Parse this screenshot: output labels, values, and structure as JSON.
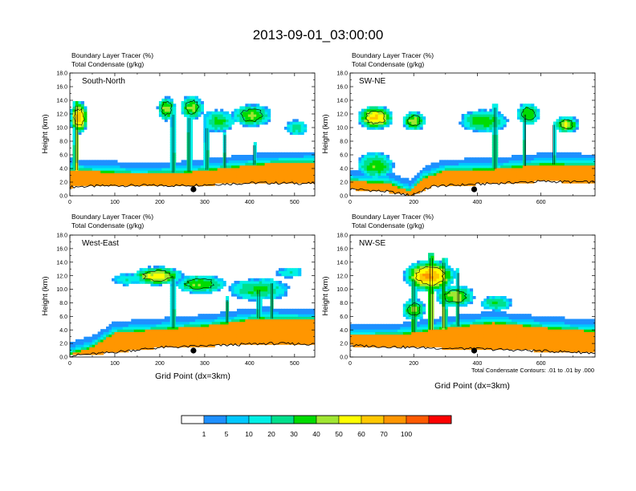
{
  "title": "2013-09-01_03:00:00",
  "footnote": "Total Condensate Contours: .01 to .01 by .000",
  "chart_data": [
    {
      "type": "heatmap",
      "panel_label": "South-North",
      "subtitle_1": "Boundary Layer Tracer   (%)",
      "subtitle_2": "Total Condensate   (g/kg)",
      "ylabel": "Height (km)",
      "xlabel": "",
      "xlim": [
        0,
        545
      ],
      "ylim": [
        0,
        18
      ],
      "xticks": [
        0,
        100,
        200,
        300,
        400,
        500
      ],
      "yticks": [
        "0.0",
        "2.0",
        "4.0",
        "6.0",
        "8.0",
        "10.0",
        "12.0",
        "14.0",
        "16.0",
        "18.0"
      ],
      "marker_x": 275,
      "field": {
        "bl_top_km": [
          [
            0,
            3.8
          ],
          [
            60,
            3.6
          ],
          [
            150,
            3.2
          ],
          [
            250,
            3.4
          ],
          [
            350,
            4.1
          ],
          [
            450,
            4.8
          ],
          [
            545,
            4.9
          ]
        ],
        "terrain_km": [
          [
            0,
            1.3
          ],
          [
            100,
            1.5
          ],
          [
            250,
            1.5
          ],
          [
            330,
            1.7
          ],
          [
            420,
            1.9
          ],
          [
            545,
            1.8
          ]
        ],
        "clouds": [
          {
            "x": 20,
            "y": 11.5,
            "w": 32,
            "h": 3.8,
            "peak": 68
          },
          {
            "x": 215,
            "y": 12.8,
            "w": 32,
            "h": 2.8,
            "peak": 45
          },
          {
            "x": 272,
            "y": 13.0,
            "w": 42,
            "h": 2.8,
            "peak": 42
          },
          {
            "x": 330,
            "y": 11.0,
            "w": 60,
            "h": 2.6,
            "peak": 32
          },
          {
            "x": 405,
            "y": 11.8,
            "w": 70,
            "h": 2.6,
            "peak": 42
          },
          {
            "x": 505,
            "y": 10.0,
            "w": 40,
            "h": 1.8,
            "peak": 25
          }
        ],
        "columns": [
          {
            "x": 15,
            "top": 13.8,
            "w": 12,
            "peak": 55
          },
          {
            "x": 230,
            "top": 12.5,
            "w": 8,
            "peak": 35
          },
          {
            "x": 265,
            "top": 12.0,
            "w": 10,
            "peak": 35
          },
          {
            "x": 305,
            "top": 10.5,
            "w": 10,
            "peak": 30
          },
          {
            "x": 345,
            "top": 9.5,
            "w": 8,
            "peak": 30
          },
          {
            "x": 410,
            "top": 8.0,
            "w": 8,
            "peak": 30
          }
        ]
      }
    },
    {
      "type": "heatmap",
      "panel_label": "SW-NE",
      "subtitle_1": "Boundary Layer Tracer   (%)",
      "subtitle_2": "Total Condensate   (g/kg)",
      "ylabel": "Height (km)",
      "xlabel": "",
      "xlim": [
        0,
        770
      ],
      "ylim": [
        0,
        18
      ],
      "xticks": [
        0,
        200,
        400,
        600
      ],
      "yticks": [
        "0.0",
        "2.0",
        "4.0",
        "6.0",
        "8.0",
        "10.0",
        "12.0",
        "14.0",
        "16.0",
        "18.0"
      ],
      "marker_x": 390,
      "field": {
        "bl_top_km": [
          [
            0,
            2.2
          ],
          [
            120,
            1.9
          ],
          [
            190,
            0.6
          ],
          [
            230,
            2.6
          ],
          [
            300,
            3.7
          ],
          [
            450,
            3.9
          ],
          [
            600,
            4.6
          ],
          [
            770,
            4.5
          ]
        ],
        "terrain_km": [
          [
            0,
            1.0
          ],
          [
            120,
            0.6
          ],
          [
            190,
            0.05
          ],
          [
            260,
            1.4
          ],
          [
            400,
            1.7
          ],
          [
            600,
            2.1
          ],
          [
            770,
            2.0
          ]
        ],
        "clouds": [
          {
            "x": 80,
            "y": 11.5,
            "w": 90,
            "h": 2.8,
            "peak": 62
          },
          {
            "x": 200,
            "y": 11.0,
            "w": 60,
            "h": 2.2,
            "peak": 45
          },
          {
            "x": 80,
            "y": 4.5,
            "w": 90,
            "h": 3.2,
            "peak": 38
          },
          {
            "x": 420,
            "y": 11.0,
            "w": 120,
            "h": 2.6,
            "peak": 38
          },
          {
            "x": 560,
            "y": 12.0,
            "w": 60,
            "h": 2.6,
            "peak": 40
          },
          {
            "x": 680,
            "y": 10.5,
            "w": 60,
            "h": 2.0,
            "peak": 50
          }
        ],
        "columns": [
          {
            "x": 455,
            "top": 13.5,
            "w": 12,
            "peak": 45
          },
          {
            "x": 550,
            "top": 12.5,
            "w": 10,
            "peak": 40
          },
          {
            "x": 640,
            "top": 11.0,
            "w": 10,
            "peak": 35
          }
        ]
      }
    },
    {
      "type": "heatmap",
      "panel_label": "West-East",
      "subtitle_1": "Boundary Layer Tracer   (%)",
      "subtitle_2": "Total Condensate   (g/kg)",
      "ylabel": "Height (km)",
      "xlabel": "Grid Point (dx=3km)",
      "xlim": [
        0,
        545
      ],
      "ylim": [
        0,
        18
      ],
      "xticks": [
        0,
        100,
        200,
        300,
        400,
        500
      ],
      "yticks": [
        "0.0",
        "2.0",
        "4.0",
        "6.0",
        "8.0",
        "10.0",
        "12.0",
        "14.0",
        "16.0",
        "18.0"
      ],
      "marker_x": 275,
      "field": {
        "bl_top_km": [
          [
            0,
            0.5
          ],
          [
            50,
            1.5
          ],
          [
            100,
            3.6
          ],
          [
            200,
            4.1
          ],
          [
            300,
            4.6
          ],
          [
            420,
            5.7
          ],
          [
            545,
            5.5
          ]
        ],
        "terrain_km": [
          [
            0,
            0.2
          ],
          [
            80,
            0.6
          ],
          [
            200,
            1.4
          ],
          [
            330,
            1.7
          ],
          [
            440,
            2.0
          ],
          [
            545,
            1.9
          ]
        ],
        "clouds": [
          {
            "x": 195,
            "y": 12.0,
            "w": 90,
            "h": 2.2,
            "peak": 55
          },
          {
            "x": 290,
            "y": 10.8,
            "w": 90,
            "h": 2.2,
            "peak": 40
          },
          {
            "x": 420,
            "y": 10.0,
            "w": 110,
            "h": 2.6,
            "peak": 32
          },
          {
            "x": 130,
            "y": 11.5,
            "w": 60,
            "h": 1.4,
            "peak": 18
          },
          {
            "x": 490,
            "y": 12.5,
            "w": 50,
            "h": 1.2,
            "peak": 18
          }
        ],
        "columns": [
          {
            "x": 230,
            "top": 12.5,
            "w": 8,
            "peak": 35
          },
          {
            "x": 350,
            "top": 9.0,
            "w": 8,
            "peak": 30
          },
          {
            "x": 420,
            "top": 10.5,
            "w": 10,
            "peak": 30
          },
          {
            "x": 450,
            "top": 11.5,
            "w": 8,
            "peak": 30
          }
        ]
      }
    },
    {
      "type": "heatmap",
      "panel_label": "NW-SE",
      "subtitle_1": "Boundary Layer Tracer   (%)",
      "subtitle_2": "Total Condensate   (g/kg)",
      "ylabel": "Height (km)",
      "xlabel": "Grid Point (dx=3km)",
      "xlim": [
        0,
        770
      ],
      "ylim": [
        0,
        18
      ],
      "xticks": [
        0,
        200,
        400,
        600
      ],
      "yticks": [
        "0.0",
        "2.0",
        "4.0",
        "6.0",
        "8.0",
        "10.0",
        "12.0",
        "14.0",
        "16.0",
        "18.0"
      ],
      "marker_x": 390,
      "field": {
        "bl_top_km": [
          [
            0,
            3.2
          ],
          [
            150,
            3.3
          ],
          [
            300,
            4.3
          ],
          [
            450,
            5.1
          ],
          [
            600,
            4.4
          ],
          [
            770,
            3.8
          ]
        ],
        "terrain_km": [
          [
            0,
            1.7
          ],
          [
            200,
            1.4
          ],
          [
            300,
            1.3
          ],
          [
            400,
            1.2
          ],
          [
            600,
            0.9
          ],
          [
            770,
            0.6
          ]
        ],
        "clouds": [
          {
            "x": 250,
            "y": 12.0,
            "w": 130,
            "h": 3.8,
            "peak": 70
          },
          {
            "x": 330,
            "y": 9.0,
            "w": 100,
            "h": 2.6,
            "peak": 45
          },
          {
            "x": 460,
            "y": 8.0,
            "w": 80,
            "h": 1.8,
            "peak": 30
          },
          {
            "x": 200,
            "y": 7.0,
            "w": 60,
            "h": 2.6,
            "peak": 40
          }
        ],
        "columns": [
          {
            "x": 200,
            "top": 12.0,
            "w": 14,
            "peak": 45
          },
          {
            "x": 255,
            "top": 15.2,
            "w": 18,
            "peak": 62
          },
          {
            "x": 295,
            "top": 14.5,
            "w": 14,
            "peak": 55
          },
          {
            "x": 340,
            "top": 13.0,
            "w": 10,
            "peak": 40
          }
        ]
      }
    }
  ],
  "colorbar": {
    "labels": [
      "1",
      "5",
      "10",
      "20",
      "30",
      "40",
      "50",
      "60",
      "70",
      "100"
    ],
    "colors": [
      "#ffffff",
      "#1e90ff",
      "#00c8ff",
      "#00f0e6",
      "#00e08c",
      "#00dc00",
      "#a0e632",
      "#ffff00",
      "#ffc800",
      "#ff9600",
      "#ff5a00",
      "#ff0000"
    ]
  }
}
